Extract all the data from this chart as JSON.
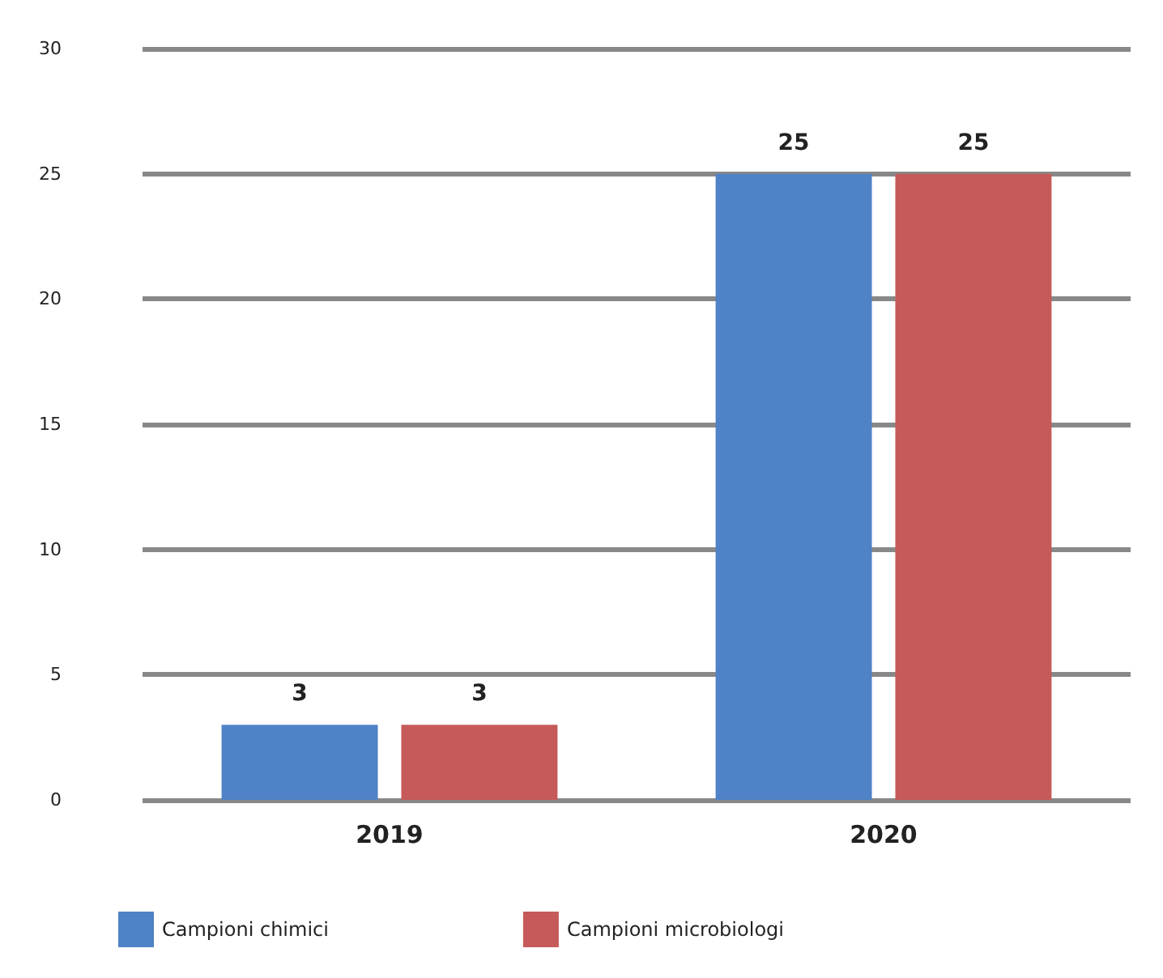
{
  "chart_data": {
    "type": "bar",
    "categories": [
      "2019",
      "2020"
    ],
    "series": [
      {
        "name": "Campioni chimici",
        "color": "#4f82c6",
        "values": [
          3,
          25
        ]
      },
      {
        "name": "Campioni microbiologi",
        "color": "#c65a5a",
        "values": [
          3,
          25
        ]
      }
    ],
    "ylim": [
      0,
      30
    ],
    "yticks": [
      0,
      5,
      10,
      15,
      20,
      25,
      30
    ],
    "grid": "y",
    "legend": "bottom",
    "data_labels": true
  }
}
